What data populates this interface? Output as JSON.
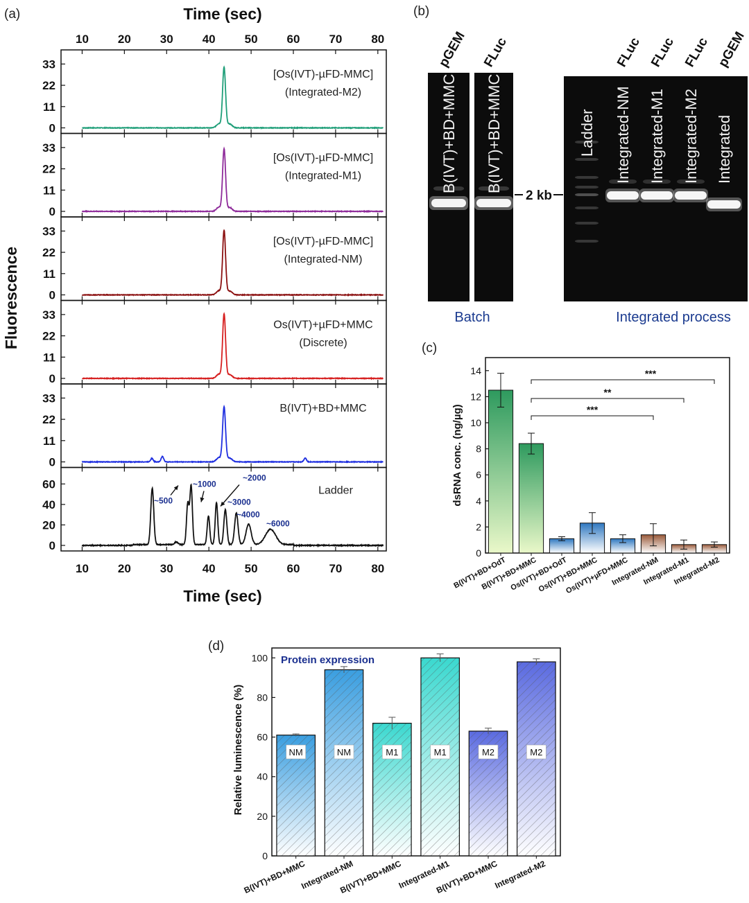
{
  "panel_labels": {
    "a": "(a)",
    "b": "(b)",
    "c": "(c)",
    "d": "(d)"
  },
  "panel_a": {
    "x_title": "Time (sec)",
    "y_title": "Fluorescence",
    "x_ticks": [
      "10",
      "20",
      "30",
      "40",
      "50",
      "60",
      "70",
      "80"
    ],
    "xlim": [
      5,
      82
    ],
    "traces": [
      {
        "label1": "[Os(IVT)-µFD-MMC]",
        "label2": "(Integrated-M2)",
        "color": "#1e9e78",
        "yticks": [
          "33",
          "22",
          "11",
          "0"
        ],
        "ymax": 36,
        "peak": 31,
        "side": [],
        "noise": 0.3
      },
      {
        "label1": "[Os(IVT)-µFD-MMC]",
        "label2": "(Integrated-M1)",
        "color": "#8e2a9a",
        "yticks": [
          "33",
          "22",
          "11",
          "0"
        ],
        "ymax": 36,
        "peak": 32,
        "side": [],
        "noise": 0.3
      },
      {
        "label1": "[Os(IVT)-µFD-MMC]",
        "label2": "(Integrated-NM)",
        "color": "#8b1010",
        "yticks": [
          "33",
          "22",
          "11",
          "0"
        ],
        "ymax": 36,
        "peak": 33,
        "side": [],
        "noise": 0.3
      },
      {
        "label1": "Os(IVT)+µFD+MMC",
        "label2": "(Discrete)",
        "color": "#d61f1f",
        "yticks": [
          "33",
          "22",
          "11",
          "0"
        ],
        "ymax": 36,
        "peak": 33,
        "side": [],
        "noise": 0.3
      },
      {
        "label1": "B(IVT)+BD+MMC",
        "label2": "",
        "color": "#1f2fe0",
        "yticks": [
          "33",
          "22",
          "11",
          "0"
        ],
        "ymax": 36,
        "peak": 28,
        "side": [
          [
            26.5,
            1.8
          ],
          [
            29,
            2.8
          ],
          [
            62.8,
            2.0
          ]
        ],
        "noise": 0.3
      }
    ],
    "ladder": {
      "label": "Ladder",
      "color": "#111111",
      "yticks": [
        "60",
        "40",
        "20",
        "0"
      ],
      "ymax": 68,
      "peaks": [
        [
          26.6,
          55,
          0.35
        ],
        [
          32.3,
          2.5,
          0.4
        ],
        [
          35.0,
          40,
          0.3
        ],
        [
          35.8,
          57,
          0.3
        ],
        [
          39.9,
          28,
          0.3
        ],
        [
          41.8,
          41,
          0.3
        ],
        [
          43.9,
          34,
          0.35
        ],
        [
          46.5,
          31,
          0.4
        ],
        [
          49.4,
          20,
          0.6
        ],
        [
          54.6,
          15,
          1.2
        ]
      ],
      "annotations": [
        "~500",
        "~1000",
        "~2000",
        "~3000",
        "~4000",
        "~6000"
      ]
    }
  },
  "panel_b": {
    "batch_lanes": [
      {
        "top": "pGEM",
        "text": "B(IVT)+BD+MMC"
      },
      {
        "top": "FLuc",
        "text": "B(IVT)+BD+MMC"
      }
    ],
    "integrated_lanes": [
      {
        "top": "",
        "text": "Ladder"
      },
      {
        "top": "FLuc",
        "text": "Integrated-NM"
      },
      {
        "top": "FLuc",
        "text": "Integrated-M1"
      },
      {
        "top": "FLuc",
        "text": "Integrated-M2"
      },
      {
        "top": "pGEM",
        "text": "Integrated"
      }
    ],
    "marker": "2 kb",
    "batch_label": "Batch",
    "integrated_label": "Integrated process"
  },
  "chart_data": [
    {
      "type": "bar",
      "panel": "c",
      "ylabel": "dsRNA conc. (ng/µg)",
      "ylim": [
        0,
        15
      ],
      "yticks": [
        0,
        2,
        4,
        6,
        8,
        10,
        12,
        14
      ],
      "categories": [
        "B(IVT)+BD+OdT",
        "B(IVT)+BD+MMC",
        "Os(IVT)+BD+OdT",
        "Os(IVT)+BD+MMC",
        "Os(IVT)+µFD+MMC",
        "Integrated-NM",
        "Integrated-M1",
        "Integrated-M2"
      ],
      "values": [
        12.5,
        8.4,
        1.1,
        2.3,
        1.1,
        1.4,
        0.65,
        0.65
      ],
      "errors": [
        1.3,
        0.8,
        0.15,
        0.8,
        0.3,
        0.85,
        0.35,
        0.2
      ],
      "colors": [
        "#2e9a5e",
        "#2e9a5e",
        "#2f78c0",
        "#2f78c0",
        "#2f78c0",
        "#9a5a3a",
        "#9a5a3a",
        "#9a5a3a"
      ],
      "significance": [
        {
          "from": 1,
          "to": 7,
          "label": "***"
        },
        {
          "from": 1,
          "to": 6,
          "label": "**"
        },
        {
          "from": 1,
          "to": 5,
          "label": "***"
        }
      ]
    },
    {
      "type": "bar",
      "panel": "d",
      "title": "Protein expression",
      "ylabel": "Relative luminescence (%)",
      "ylim": [
        0,
        105
      ],
      "yticks": [
        0,
        20,
        40,
        60,
        80,
        100
      ],
      "categories": [
        "B(IVT)+BD+MMC",
        "Integrated-NM",
        "B(IVT)+BD+MMC",
        "Integrated-M1",
        "B(IVT)+BD+MMC",
        "Integrated-M2"
      ],
      "values": [
        61,
        94,
        67,
        100,
        63,
        98
      ],
      "errors": [
        0.6,
        1.6,
        3.0,
        2.0,
        1.5,
        1.5
      ],
      "bar_labels": [
        "NM",
        "NM",
        "M1",
        "M1",
        "M2",
        "M2"
      ],
      "colors": [
        "#3a9ee0",
        "#3a9ee0",
        "#3ad8cf",
        "#3ad8cf",
        "#5a6ae0",
        "#5a6ae0"
      ]
    }
  ]
}
